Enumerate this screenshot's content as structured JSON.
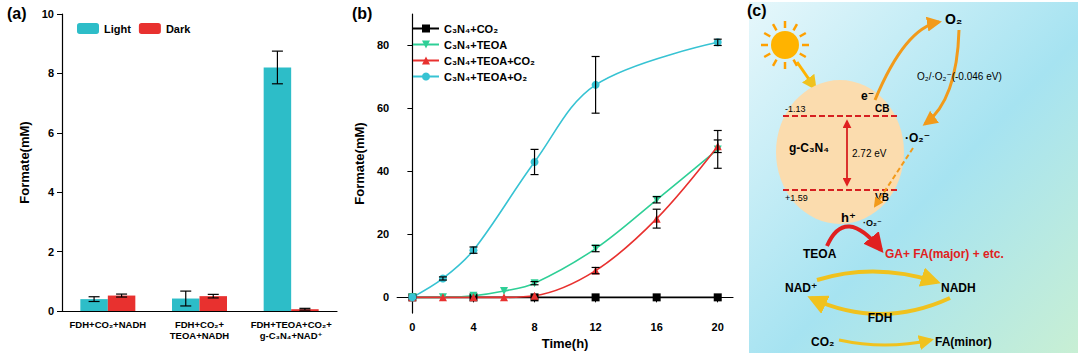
{
  "chart_data": [
    {
      "type": "bar",
      "title": "(a)",
      "y_label": "Formate(mM)",
      "categories": [
        "FDH+CO₂+NADH",
        "FDH+CO₂+\nTEOA+NADH",
        "FDH+TEOA+CO₂+\ng-C₃N₄+NAD⁺"
      ],
      "series": [
        {
          "name": "Light",
          "color": "#2dbdc8",
          "values": [
            0.4,
            0.42,
            8.2
          ],
          "errors": [
            0.08,
            0.25,
            0.55
          ]
        },
        {
          "name": "Dark",
          "color": "#e8312f",
          "values": [
            0.52,
            0.5,
            0.06
          ],
          "errors": [
            0.05,
            0.06,
            0.03
          ]
        }
      ],
      "ylim": [
        0,
        10
      ],
      "yticks": [
        0,
        2,
        4,
        6,
        8,
        10
      ],
      "grid": false,
      "legend": "upper left"
    },
    {
      "type": "line",
      "title": "(b)",
      "x_label": "Time(h)",
      "y_label": "Formate(mM)",
      "series": [
        {
          "name": "C₃N₄+CO₂",
          "color": "#000000",
          "marker": "square",
          "line_style": "solid",
          "x": [
            0,
            4,
            8,
            12,
            16,
            20
          ],
          "values": [
            0,
            0,
            0,
            0,
            0,
            0
          ],
          "errors": [
            0,
            0,
            0,
            0,
            0,
            0
          ]
        },
        {
          "name": "C₃N₄+TEOA",
          "color": "#2ecf96",
          "marker": "triangle-down",
          "line_style": "solid",
          "x": [
            0,
            2,
            4,
            6,
            8,
            12,
            16,
            20
          ],
          "values": [
            0,
            0,
            0.5,
            2,
            4.5,
            15.5,
            31,
            47
          ],
          "errors": [
            0,
            0,
            0,
            0,
            0.5,
            1,
            1,
            6
          ]
        },
        {
          "name": "C₃N₄+TEOA+CO₂",
          "color": "#e8312f",
          "marker": "triangle",
          "line_style": "solid",
          "x": [
            0,
            2,
            4,
            6,
            8,
            12,
            16,
            20
          ],
          "values": [
            0,
            0,
            0,
            0,
            0.5,
            8.5,
            25,
            48
          ],
          "errors": [
            0,
            0,
            0,
            0,
            0,
            1,
            3,
            2
          ]
        },
        {
          "name": "C₃N₄+TEOA+O₂",
          "color": "#37c3d3",
          "marker": "circle",
          "line_style": "solid",
          "x": [
            0,
            2,
            4,
            8,
            12,
            20
          ],
          "values": [
            0,
            6,
            15,
            43,
            67.5,
            81
          ],
          "errors": [
            0,
            0.5,
            1,
            4,
            9,
            1
          ]
        }
      ],
      "xlim": [
        -1,
        21
      ],
      "xticks": [
        0,
        4,
        8,
        12,
        16,
        20
      ],
      "ylim": [
        -5,
        90
      ],
      "yticks": [
        0,
        20,
        40,
        60,
        80
      ],
      "grid": false,
      "legend": "upper left"
    }
  ],
  "diagram": {
    "label": "(c)",
    "semiconductor": "g-C₃N₄",
    "conduction_band": {
      "label": "CB",
      "potential": "-1.13"
    },
    "valence_band": {
      "label": "VB",
      "potential": "+1.59"
    },
    "band_gap": "2.72 eV",
    "electron": "e⁻",
    "hole": "h⁺",
    "oxygen": "O₂",
    "redox_couple": "O₂/·O₂⁻(-0.046 eV)",
    "superoxide": "·O₂⁻",
    "hole_side_radical": "·O₂⁻",
    "donor": "TEOA",
    "products": [
      "GA+",
      "FA(major)",
      "+ etc."
    ],
    "cofactor_oxidized": "NAD⁺",
    "cofactor_reduced": "NADH",
    "enzyme": "FDH",
    "substrate": "CO₂",
    "minor_product": "FA(minor)"
  }
}
